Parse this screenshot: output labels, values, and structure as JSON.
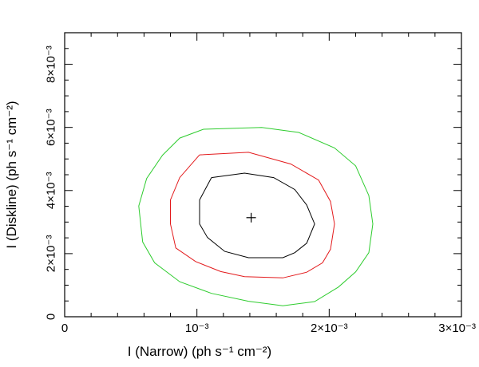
{
  "chart_data": {
    "type": "contour",
    "xlabel": "I (Narrow) (ph s⁻¹ cm⁻²)",
    "ylabel": "I (Diskline) (ph s⁻¹ cm⁻²)",
    "xlim": [
      0,
      0.003
    ],
    "ylim": [
      0,
      0.009
    ],
    "x_major_ticks": [
      {
        "value": 0,
        "label": "0"
      },
      {
        "value": 0.001,
        "label": "10⁻³"
      },
      {
        "value": 0.002,
        "label": "2×10⁻³"
      },
      {
        "value": 0.003,
        "label": "3×10⁻³"
      }
    ],
    "y_major_ticks": [
      {
        "value": 0,
        "label": "0"
      },
      {
        "value": 0.002,
        "label": "2×10⁻³"
      },
      {
        "value": 0.004,
        "label": "4×10⁻³"
      },
      {
        "value": 0.006,
        "label": "6×10⁻³"
      },
      {
        "value": 0.008,
        "label": "8×10⁻³"
      }
    ],
    "x_minor_step": 0.0002,
    "y_minor_step": 0.0005,
    "best_fit": {
      "x": 0.00141,
      "y": 0.00314,
      "marker": "+"
    },
    "series": [
      {
        "level": "inner",
        "color": "#000000",
        "points": [
          [
            0.00111,
            0.00441
          ],
          [
            0.00136,
            0.00455
          ],
          [
            0.00158,
            0.00441
          ],
          [
            0.00174,
            0.00403
          ],
          [
            0.00183,
            0.00354
          ],
          [
            0.00189,
            0.00294
          ],
          [
            0.00183,
            0.00233
          ],
          [
            0.00174,
            0.00203
          ],
          [
            0.00165,
            0.00187
          ],
          [
            0.00139,
            0.00187
          ],
          [
            0.00121,
            0.00207
          ],
          [
            0.00108,
            0.00251
          ],
          [
            0.00102,
            0.00294
          ],
          [
            0.00102,
            0.0037
          ],
          [
            0.00111,
            0.00441
          ]
        ]
      },
      {
        "level": "middle",
        "color": "#e31a1c",
        "points": [
          [
            0.00102,
            0.00513
          ],
          [
            0.00139,
            0.00521
          ],
          [
            0.00171,
            0.00484
          ],
          [
            0.00192,
            0.00433
          ],
          [
            0.00201,
            0.00365
          ],
          [
            0.00204,
            0.00294
          ],
          [
            0.00201,
            0.00214
          ],
          [
            0.00195,
            0.00171
          ],
          [
            0.00183,
            0.00141
          ],
          [
            0.00165,
            0.00123
          ],
          [
            0.00136,
            0.00127
          ],
          [
            0.00118,
            0.00143
          ],
          [
            0.00099,
            0.00175
          ],
          [
            0.00084,
            0.00218
          ],
          [
            0.0008,
            0.00294
          ],
          [
            0.0008,
            0.0037
          ],
          [
            0.00087,
            0.00441
          ],
          [
            0.00102,
            0.00513
          ]
        ]
      },
      {
        "level": "outer",
        "color": "#2ecc2e",
        "points": [
          [
            0.00105,
            0.00594
          ],
          [
            0.00149,
            0.006
          ],
          [
            0.00177,
            0.00584
          ],
          [
            0.00204,
            0.00535
          ],
          [
            0.0022,
            0.00478
          ],
          [
            0.0023,
            0.00384
          ],
          [
            0.00233,
            0.00294
          ],
          [
            0.0023,
            0.00203
          ],
          [
            0.0022,
            0.00142
          ],
          [
            0.00207,
            0.00094
          ],
          [
            0.00189,
            0.00048
          ],
          [
            0.00165,
            0.00035
          ],
          [
            0.00139,
            0.00049
          ],
          [
            0.00111,
            0.00074
          ],
          [
            0.00087,
            0.00111
          ],
          [
            0.00068,
            0.00171
          ],
          [
            0.00059,
            0.00237
          ],
          [
            0.00056,
            0.00351
          ],
          [
            0.00062,
            0.00438
          ],
          [
            0.00074,
            0.00512
          ],
          [
            0.00087,
            0.00566
          ],
          [
            0.00105,
            0.00594
          ]
        ]
      }
    ],
    "grid": false,
    "legend": "none"
  }
}
